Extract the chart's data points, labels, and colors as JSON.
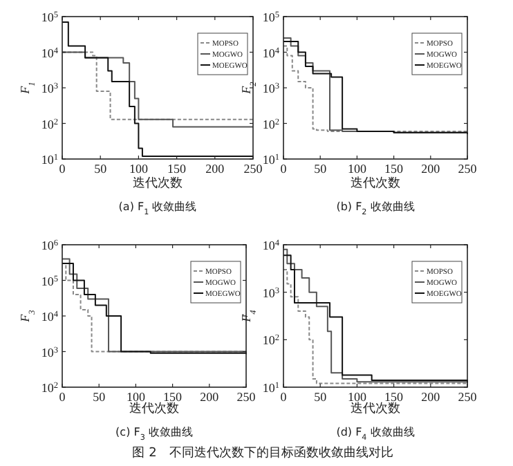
{
  "chart_data": [
    {
      "type": "step",
      "title": "(a) F$_{1}$ 收敛曲线",
      "xlabel": "迭代次数",
      "ylabel": "F$_{1}$",
      "log": "y",
      "legend": "top right",
      "xlim": [
        0,
        250
      ],
      "xticks": [
        0,
        50,
        100,
        150,
        200,
        250
      ],
      "ylim": [
        10,
        100000
      ],
      "yticks": [
        {
          "value": 10,
          "label": "10$^{1}$"
        },
        {
          "value": 100,
          "label": "10$^{2}$"
        },
        {
          "value": 1000,
          "label": "10$^{3}$"
        },
        {
          "value": 10000,
          "label": "10$^{4}$"
        },
        {
          "value": 100000,
          "label": "10$^{5}$"
        }
      ],
      "series": [
        {
          "name": "MOPSO",
          "color": "#888888",
          "line_style": "dashed",
          "x": [
            0,
            40,
            45,
            63,
            250
          ],
          "values": [
            10000,
            8000,
            800,
            130,
            130
          ]
        },
        {
          "name": "MOGWO",
          "color": "#555555",
          "line_style": "solid",
          "x": [
            0,
            30,
            80,
            88,
            95,
            100,
            145,
            250
          ],
          "values": [
            10000,
            7000,
            5000,
            1500,
            500,
            130,
            80,
            80
          ]
        },
        {
          "name": "MOEGWO",
          "color": "#111111",
          "line_style": "solid",
          "x": [
            0,
            8,
            30,
            60,
            65,
            88,
            95,
            100,
            105,
            250
          ],
          "values": [
            70000,
            15000,
            7000,
            3000,
            1500,
            300,
            100,
            20,
            12,
            12
          ]
        }
      ]
    },
    {
      "type": "step",
      "title": "(b) F$_{2}$ 收敛曲线",
      "xlabel": "迭代次数",
      "ylabel": "F$_{2}$",
      "log": "y",
      "legend": "top right",
      "xlim": [
        0,
        250
      ],
      "xticks": [
        0,
        50,
        100,
        150,
        200,
        250
      ],
      "ylim": [
        10,
        100000
      ],
      "yticks": [
        {
          "value": 10,
          "label": "10$^{1}$"
        },
        {
          "value": 100,
          "label": "10$^{2}$"
        },
        {
          "value": 1000,
          "label": "10$^{3}$"
        },
        {
          "value": 10000,
          "label": "10$^{4}$"
        },
        {
          "value": 100000,
          "label": "10$^{5}$"
        }
      ],
      "series": [
        {
          "name": "MOPSO",
          "color": "#888888",
          "line_style": "dashed",
          "x": [
            0,
            5,
            12,
            20,
            30,
            40,
            45,
            60,
            250
          ],
          "values": [
            15000,
            8000,
            3000,
            1500,
            1000,
            70,
            65,
            60,
            60
          ]
        },
        {
          "name": "MOGWO",
          "color": "#555555",
          "line_style": "solid",
          "x": [
            0,
            10,
            20,
            30,
            40,
            63,
            80,
            150,
            250
          ],
          "values": [
            25000,
            15000,
            8000,
            5000,
            3000,
            65,
            60,
            55,
            55
          ]
        },
        {
          "name": "MOEGWO",
          "color": "#111111",
          "line_style": "solid",
          "x": [
            0,
            20,
            30,
            40,
            63,
            65,
            80,
            100,
            150,
            250
          ],
          "values": [
            20000,
            10000,
            4000,
            2500,
            2500,
            2000,
            70,
            60,
            55,
            50
          ]
        }
      ]
    },
    {
      "type": "step",
      "title": "(c) F$_{3}$ 收敛曲线",
      "xlabel": "迭代次数",
      "ylabel": "F$_{3}$",
      "log": "y",
      "legend": "top right",
      "xlim": [
        0,
        250
      ],
      "xticks": [
        0,
        50,
        100,
        150,
        200,
        250
      ],
      "ylim": [
        100,
        1000000
      ],
      "yticks": [
        {
          "value": 100,
          "label": "10$^{2}$"
        },
        {
          "value": 1000,
          "label": "10$^{3}$"
        },
        {
          "value": 10000,
          "label": "10$^{4}$"
        },
        {
          "value": 100000,
          "label": "10$^{5}$"
        },
        {
          "value": 1000000,
          "label": "10$^{6}$"
        }
      ],
      "series": [
        {
          "name": "MOPSO",
          "color": "#888888",
          "line_style": "dashed",
          "x": [
            0,
            5,
            15,
            25,
            35,
            40,
            250
          ],
          "values": [
            300000,
            100000,
            40000,
            15000,
            10000,
            1000,
            900
          ]
        },
        {
          "name": "MOGWO",
          "color": "#555555",
          "line_style": "solid",
          "x": [
            0,
            10,
            20,
            35,
            63,
            250
          ],
          "values": [
            400000,
            150000,
            60000,
            30000,
            1000,
            900
          ]
        },
        {
          "name": "MOEGWO",
          "color": "#111111",
          "line_style": "solid",
          "x": [
            0,
            15,
            30,
            45,
            60,
            80,
            120,
            250
          ],
          "values": [
            300000,
            100000,
            40000,
            20000,
            10000,
            1000,
            900,
            850
          ]
        }
      ]
    },
    {
      "type": "step",
      "title": "(d) F$_{4}$ 收敛曲线",
      "xlabel": "迭代次数",
      "ylabel": "F$_{4}$",
      "log": "y",
      "legend": "top right",
      "xlim": [
        0,
        250
      ],
      "xticks": [
        0,
        50,
        100,
        150,
        200,
        250
      ],
      "ylim": [
        10,
        10000
      ],
      "yticks": [
        {
          "value": 10,
          "label": "10$^{1}$"
        },
        {
          "value": 100,
          "label": "10$^{2}$"
        },
        {
          "value": 1000,
          "label": "10$^{3}$"
        },
        {
          "value": 10000,
          "label": "10$^{4}$"
        }
      ],
      "annotations": [
        "图 2　不同迭代次数下的目标函数收敛曲线对比"
      ],
      "series": [
        {
          "name": "MOPSO",
          "color": "#888888",
          "line_style": "dashed",
          "x": [
            0,
            5,
            10,
            20,
            30,
            35,
            40,
            45,
            250
          ],
          "values": [
            3000,
            1500,
            800,
            400,
            300,
            100,
            15,
            12,
            11
          ]
        },
        {
          "name": "MOGWO",
          "color": "#555555",
          "line_style": "solid",
          "x": [
            0,
            5,
            15,
            25,
            35,
            45,
            60,
            65,
            80,
            100,
            250
          ],
          "values": [
            8000,
            4000,
            3000,
            2000,
            1000,
            500,
            150,
            20,
            15,
            13,
            12
          ]
        },
        {
          "name": "MOEGWO",
          "color": "#111111",
          "line_style": "solid",
          "x": [
            0,
            10,
            15,
            60,
            63,
            80,
            120,
            250
          ],
          "values": [
            6000,
            3000,
            600,
            600,
            300,
            18,
            14,
            13
          ]
        }
      ]
    }
  ]
}
